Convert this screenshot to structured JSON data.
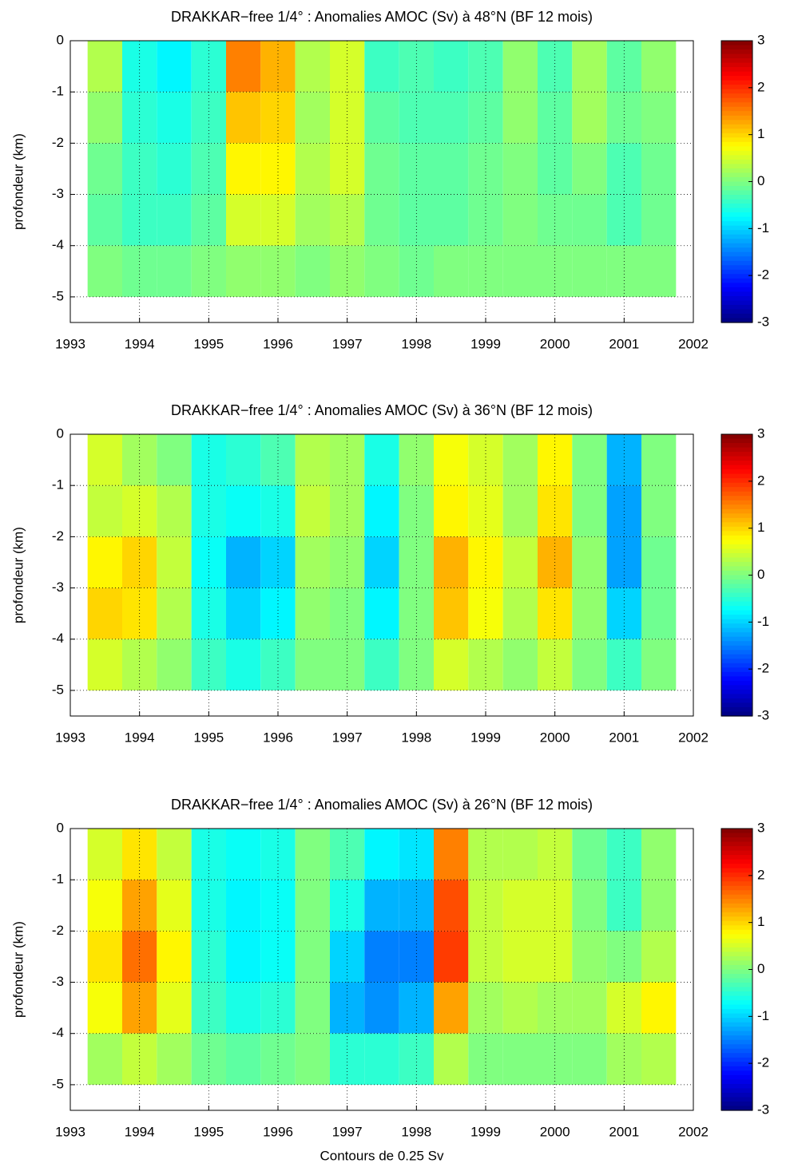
{
  "chart_data": [
    {
      "type": "heatmap",
      "title": "DRAKKAR−free 1/4° : Anomalies AMOC (Sv) à 48°N (BF 12 mois)",
      "ylabel": "profondeur (km)",
      "x": [
        1993.5,
        1994,
        1994.5,
        1995,
        1995.5,
        1996,
        1996.5,
        1997,
        1997.5,
        1998,
        1998.5,
        1999,
        1999.5,
        2000,
        2000.5,
        2001,
        2001.5
      ],
      "y": [
        -0.5,
        -1.5,
        -2.5,
        -3.5,
        -4.5
      ],
      "values": [
        [
          0.3,
          -0.6,
          -0.8,
          -0.5,
          1.5,
          1.2,
          0.3,
          0.5,
          -0.4,
          -0.3,
          -0.4,
          -0.3,
          0.1,
          -0.3,
          0.2,
          -0.2,
          0.1
        ],
        [
          0.1,
          -0.5,
          -0.6,
          -0.4,
          1.1,
          1.0,
          0.2,
          0.5,
          -0.2,
          -0.3,
          -0.3,
          -0.2,
          0.1,
          -0.2,
          0.2,
          -0.1,
          0.0
        ],
        [
          -0.1,
          -0.4,
          -0.5,
          -0.3,
          0.8,
          0.8,
          0.3,
          0.5,
          -0.1,
          -0.2,
          -0.2,
          -0.1,
          0.0,
          -0.2,
          0.0,
          -0.3,
          -0.1
        ],
        [
          -0.2,
          -0.4,
          -0.4,
          -0.2,
          0.5,
          0.5,
          0.2,
          0.3,
          -0.1,
          -0.2,
          -0.2,
          -0.1,
          0.0,
          -0.1,
          -0.1,
          -0.3,
          -0.1
        ],
        [
          0.0,
          -0.1,
          -0.1,
          0.0,
          0.1,
          0.1,
          0.0,
          0.1,
          0.0,
          -0.1,
          0.0,
          0.0,
          0.0,
          0.0,
          0.0,
          0.0,
          0.0
        ]
      ],
      "xlim": [
        1993,
        2002
      ],
      "xticks": [
        1993,
        1994,
        1995,
        1996,
        1997,
        1998,
        1999,
        2000,
        2001,
        2002
      ],
      "ylim": [
        -5.5,
        0
      ],
      "yticks": [
        0,
        -1,
        -2,
        -3,
        -4,
        -5
      ],
      "clim": [
        -3,
        3
      ],
      "cticks": [
        3,
        2,
        1,
        0,
        -1,
        -2,
        -3
      ],
      "colormap": "jet",
      "grid": true
    },
    {
      "type": "heatmap",
      "title": "DRAKKAR−free 1/4° : Anomalies AMOC (Sv) à 36°N (BF 12 mois)",
      "ylabel": "profondeur (km)",
      "x": [
        1993.5,
        1994,
        1994.5,
        1995,
        1995.5,
        1996,
        1996.5,
        1997,
        1997.5,
        1998,
        1998.5,
        1999,
        1999.5,
        2000,
        2000.5,
        2001,
        2001.5
      ],
      "y": [
        -0.5,
        -1.5,
        -2.5,
        -3.5,
        -4.5
      ],
      "values": [
        [
          0.5,
          0.2,
          0.0,
          -0.6,
          -0.5,
          -0.3,
          0.3,
          0.2,
          -0.6,
          0.1,
          0.7,
          0.5,
          0.2,
          0.8,
          0.0,
          -1.2,
          0.0
        ],
        [
          0.4,
          0.5,
          0.3,
          -0.6,
          -0.7,
          -0.6,
          0.4,
          0.2,
          -0.8,
          0.0,
          0.8,
          0.6,
          0.2,
          0.9,
          0.0,
          -1.3,
          0.0
        ],
        [
          0.8,
          1.0,
          0.4,
          -0.7,
          -1.2,
          -1.0,
          0.2,
          0.1,
          -1.0,
          0.0,
          1.2,
          0.8,
          0.4,
          1.2,
          0.1,
          -1.3,
          -0.1
        ],
        [
          1.0,
          0.9,
          0.3,
          -0.6,
          -1.0,
          -0.8,
          0.1,
          0.0,
          -0.8,
          0.0,
          1.1,
          0.7,
          0.3,
          0.9,
          0.1,
          -1.0,
          -0.1
        ],
        [
          0.5,
          0.3,
          0.1,
          -0.4,
          -0.6,
          -0.4,
          0.0,
          0.0,
          -0.4,
          0.0,
          0.5,
          0.3,
          0.1,
          0.4,
          0.0,
          -0.4,
          0.0
        ]
      ],
      "xlim": [
        1993,
        2002
      ],
      "xticks": [
        1993,
        1994,
        1995,
        1996,
        1997,
        1998,
        1999,
        2000,
        2001,
        2002
      ],
      "ylim": [
        -5.5,
        0
      ],
      "yticks": [
        0,
        -1,
        -2,
        -3,
        -4,
        -5
      ],
      "clim": [
        -3,
        3
      ],
      "cticks": [
        3,
        2,
        1,
        0,
        -1,
        -2,
        -3
      ],
      "colormap": "jet",
      "grid": true
    },
    {
      "type": "heatmap",
      "title": "DRAKKAR−free 1/4° : Anomalies AMOC (Sv) à 26°N (BF 12 mois)",
      "ylabel": "profondeur (km)",
      "xlabel": "Contours de 0.25 Sv",
      "x": [
        1993.5,
        1994,
        1994.5,
        1995,
        1995.5,
        1996,
        1996.5,
        1997,
        1997.5,
        1998,
        1998.5,
        1999,
        1999.5,
        2000,
        2000.5,
        2001,
        2001.5
      ],
      "y": [
        -0.5,
        -1.5,
        -2.5,
        -3.5,
        -4.5
      ],
      "values": [
        [
          0.5,
          0.9,
          0.4,
          -0.6,
          -0.7,
          -0.6,
          0.0,
          -0.3,
          -0.8,
          -0.9,
          1.5,
          0.3,
          0.3,
          0.4,
          -0.1,
          -0.4,
          0.1
        ],
        [
          0.7,
          1.3,
          0.6,
          -0.6,
          -0.8,
          -0.7,
          0.0,
          -0.6,
          -1.2,
          -1.2,
          1.8,
          0.4,
          0.5,
          0.5,
          0.0,
          -0.4,
          0.1
        ],
        [
          0.9,
          1.6,
          0.8,
          -0.5,
          -0.8,
          -0.7,
          0.0,
          -1.0,
          -1.5,
          -1.5,
          1.9,
          0.4,
          0.5,
          0.5,
          0.1,
          0.0,
          0.3
        ],
        [
          0.7,
          1.3,
          0.6,
          -0.4,
          -0.6,
          -0.5,
          0.0,
          -1.2,
          -1.4,
          -1.2,
          1.3,
          0.2,
          0.3,
          0.2,
          0.2,
          0.5,
          0.8
        ],
        [
          0.2,
          0.4,
          0.2,
          -0.1,
          -0.2,
          -0.1,
          0.0,
          -0.5,
          -0.5,
          -0.4,
          0.3,
          0.0,
          0.0,
          0.0,
          0.0,
          0.2,
          0.3
        ]
      ],
      "xlim": [
        1993,
        2002
      ],
      "xticks": [
        1993,
        1994,
        1995,
        1996,
        1997,
        1998,
        1999,
        2000,
        2001,
        2002
      ],
      "ylim": [
        -5.5,
        0
      ],
      "yticks": [
        0,
        -1,
        -2,
        -3,
        -4,
        -5
      ],
      "clim": [
        -3,
        3
      ],
      "cticks": [
        3,
        2,
        1,
        0,
        -1,
        -2,
        -3
      ],
      "colormap": "jet",
      "grid": true
    }
  ]
}
